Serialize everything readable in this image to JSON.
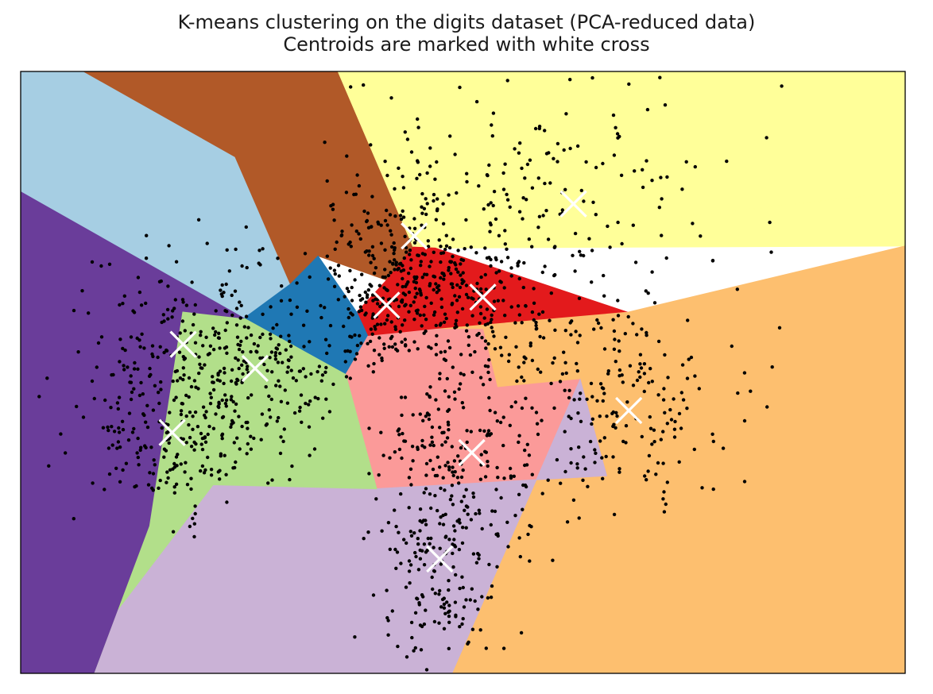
{
  "chart_data": {
    "type": "scatter",
    "title": "K-means clustering on the digits dataset (PCA-reduced data)",
    "subtitle": "Centroids are marked with white cross",
    "xlim": [
      -40,
      40
    ],
    "ylim": [
      -30,
      30
    ],
    "xticks": [],
    "yticks": [],
    "grid": false,
    "regions": [
      {
        "color": "#a6cee3",
        "polygon": [
          [
            -40,
            30
          ],
          [
            -34.3,
            30
          ],
          [
            -20.6,
            21.5
          ],
          [
            -15.6,
            8.8
          ],
          [
            -19.8,
            5.4
          ],
          [
            -40,
            18
          ]
        ]
      },
      {
        "color": "#b15928",
        "polygon": [
          [
            -34.3,
            30
          ],
          [
            -11.3,
            30
          ],
          [
            -4.5,
            12.5
          ],
          [
            -6.9,
            9.2
          ],
          [
            -13.1,
            11.6
          ],
          [
            -15.6,
            8.8
          ],
          [
            -20.6,
            21.5
          ]
        ]
      },
      {
        "color": "#ffff99",
        "polygon": [
          [
            -11.3,
            30
          ],
          [
            40,
            30
          ],
          [
            40,
            18
          ],
          [
            -4.5,
            12.5
          ]
        ]
      },
      {
        "color": "#ffff99",
        "polygon": [
          [
            40,
            18
          ],
          [
            40,
            12.6
          ],
          [
            -2.5,
            12.4
          ],
          [
            -4.5,
            12.5
          ]
        ]
      },
      {
        "color": "#e31a1c",
        "polygon": [
          [
            -6.9,
            9.2
          ],
          [
            -4.5,
            12.5
          ],
          [
            -2.5,
            12.4
          ],
          [
            14.9,
            6
          ],
          [
            -2.5,
            4.3
          ],
          [
            -8.6,
            3.6
          ],
          [
            -9.6,
            6
          ]
        ]
      },
      {
        "color": "#1f78b4",
        "polygon": [
          [
            -15.6,
            8.8
          ],
          [
            -13.1,
            11.6
          ],
          [
            -9.6,
            6
          ],
          [
            -8.6,
            3.6
          ],
          [
            -10.6,
            -0.2
          ],
          [
            -19.8,
            5.4
          ]
        ]
      },
      {
        "color": "#fdbf6f",
        "polygon": [
          [
            14.9,
            6
          ],
          [
            40,
            12.6
          ],
          [
            40,
            -30
          ],
          [
            -1,
            -30
          ],
          [
            10.6,
            -0.7
          ],
          [
            3.1,
            -1.5
          ],
          [
            1.8,
            4.3
          ],
          [
            -2.5,
            4.3
          ]
        ]
      },
      {
        "color": "#fb9a99",
        "polygon": [
          [
            -8.6,
            3.6
          ],
          [
            -2.5,
            4.3
          ],
          [
            1.8,
            4.3
          ],
          [
            3.1,
            -1.5
          ],
          [
            10.6,
            -0.7
          ],
          [
            13,
            -10.3
          ],
          [
            -7.8,
            -11.6
          ],
          [
            -10.6,
            -0.2
          ]
        ]
      },
      {
        "color": "#cab2d6",
        "polygon": [
          [
            -7.8,
            -11.6
          ],
          [
            13,
            -10.3
          ],
          [
            10.6,
            -0.7
          ],
          [
            -1,
            -30
          ],
          [
            -35.6,
            -30
          ],
          [
            -22.6,
            -11.2
          ]
        ]
      },
      {
        "color": "#b2df8a",
        "polygon": [
          [
            -19.8,
            5.4
          ],
          [
            -10.6,
            -0.2
          ],
          [
            -7.8,
            -11.6
          ],
          [
            -22.6,
            -11.2
          ],
          [
            -35.6,
            -30
          ],
          [
            -33.4,
            -30
          ],
          [
            -28.4,
            -15.3
          ],
          [
            -25.4,
            6.1
          ]
        ]
      },
      {
        "color": "#6a3d9a",
        "polygon": [
          [
            -40,
            18
          ],
          [
            -19.8,
            5.4
          ],
          [
            -25.4,
            6.1
          ],
          [
            -28.4,
            -15.3
          ],
          [
            -33.4,
            -30
          ],
          [
            -40,
            -30
          ]
        ]
      }
    ],
    "clusters": [
      {
        "centroid": [
          -26.3,
          -6.0
        ],
        "spread": [
          4.6,
          4.0
        ],
        "count": 200
      },
      {
        "centroid": [
          -18.8,
          0.4
        ],
        "spread": [
          4.0,
          4.5
        ],
        "count": 170
      },
      {
        "centroid": [
          -25.3,
          2.8
        ],
        "spread": [
          5.0,
          5.2
        ],
        "count": 150
      },
      {
        "centroid": [
          -6.9,
          6.7
        ],
        "spread": [
          3.6,
          3.8
        ],
        "count": 200
      },
      {
        "centroid": [
          -4.4,
          13.6
        ],
        "spread": [
          4.6,
          5.4
        ],
        "count": 190
      },
      {
        "centroid": [
          1.8,
          7.5
        ],
        "spread": [
          3.8,
          3.8
        ],
        "count": 150
      },
      {
        "centroid": [
          0.8,
          -8.0
        ],
        "spread": [
          4.2,
          5.0
        ],
        "count": 170
      },
      {
        "centroid": [
          -2.1,
          -18.6
        ],
        "spread": [
          2.8,
          6.0
        ],
        "count": 200
      },
      {
        "centroid": [
          15.0,
          -3.8
        ],
        "spread": [
          5.6,
          5.0
        ],
        "count": 180
      },
      {
        "centroid": [
          10.0,
          16.8
        ],
        "spread": [
          7.6,
          9.0
        ],
        "count": 150
      }
    ]
  },
  "colors": {
    "point": "#000000",
    "centroid_marker": "#ffffff",
    "axes_frame": "#000000"
  }
}
